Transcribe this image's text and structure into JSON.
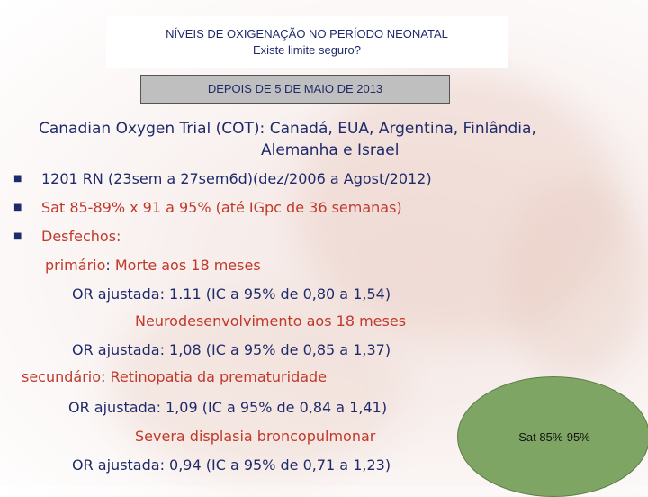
{
  "header": {
    "title": "NÍVEIS DE OXIGENAÇÃO NO PERÍODO NEONATAL",
    "subtitle": "Existe limite seguro?"
  },
  "date_banner": "DEPOIS DE 5 DE MAIO DE 2013",
  "trial": {
    "name": "Canadian Oxygen Trial (COT):",
    "countries_line1": "Canadá, EUA, Argentina, Finlândia,",
    "countries_line2": "Alemanha e Israel"
  },
  "bullets": {
    "b1": "1201 RN (23sem a 27sem6d)(dez/2006 a Agost/2012)",
    "b2": "Sat 85-89%  x 91 a 95% (até IGpc de 36 semanas)",
    "b3": "Desfechos:"
  },
  "outcomes": {
    "primary_label": "primário",
    "primary_colon": ":",
    "primary_1": "Morte aos 18 meses",
    "primary_1_or": "OR ajustada: 1.11 (IC a 95% de 0,80 a 1,54)",
    "primary_2": "Neurodesenvolvimento aos 18 meses",
    "primary_2_or": "OR ajustada: 1,08 (IC a 95% de 0,85 a 1,37)",
    "secondary_label": "secundário",
    "secondary_colon": ":",
    "secondary_1": "Retinopatia da prematuridade",
    "secondary_1_or": "OR ajustada: 1,09 (IC a 95% de 0,84 a 1,41)",
    "secondary_2": "Severa displasia broncopulmonar",
    "secondary_2_or": "OR ajustada: 0,94 (IC a 95% de 0,71 a 1,23)"
  },
  "badge": "Sat 85%-95%",
  "colors": {
    "navy": "#1f2a6b",
    "red": "#c0392b",
    "badge_green": "#7ea564"
  }
}
